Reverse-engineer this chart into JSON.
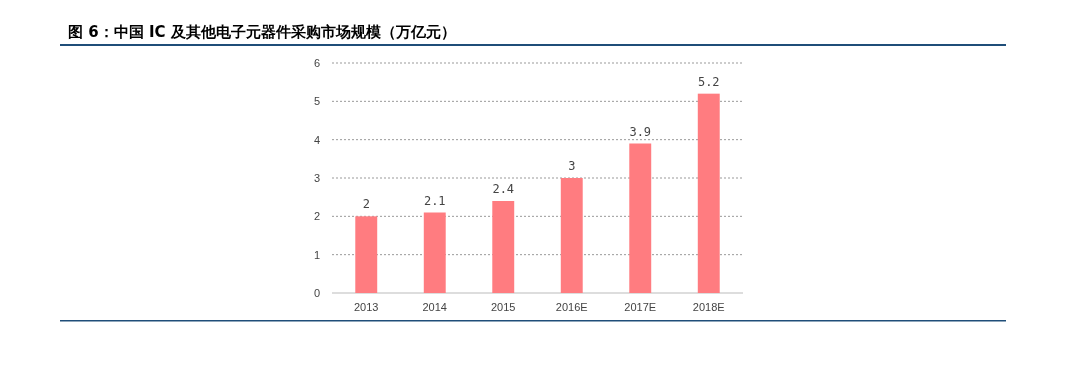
{
  "chart_data": {
    "type": "bar",
    "title": "图 6：中国 IC 及其他电子元器件采购市场规模（万亿元）",
    "categories": [
      "2013",
      "2014",
      "2015",
      "2016E",
      "2017E",
      "2018E"
    ],
    "values": [
      2,
      2.1,
      2.4,
      3,
      3.9,
      5.2
    ],
    "color": "#ff7c80",
    "ylim": [
      0,
      6
    ],
    "yticks": [
      0,
      1,
      2,
      3,
      4,
      5,
      6
    ],
    "grid": "y",
    "data_labels": true
  }
}
